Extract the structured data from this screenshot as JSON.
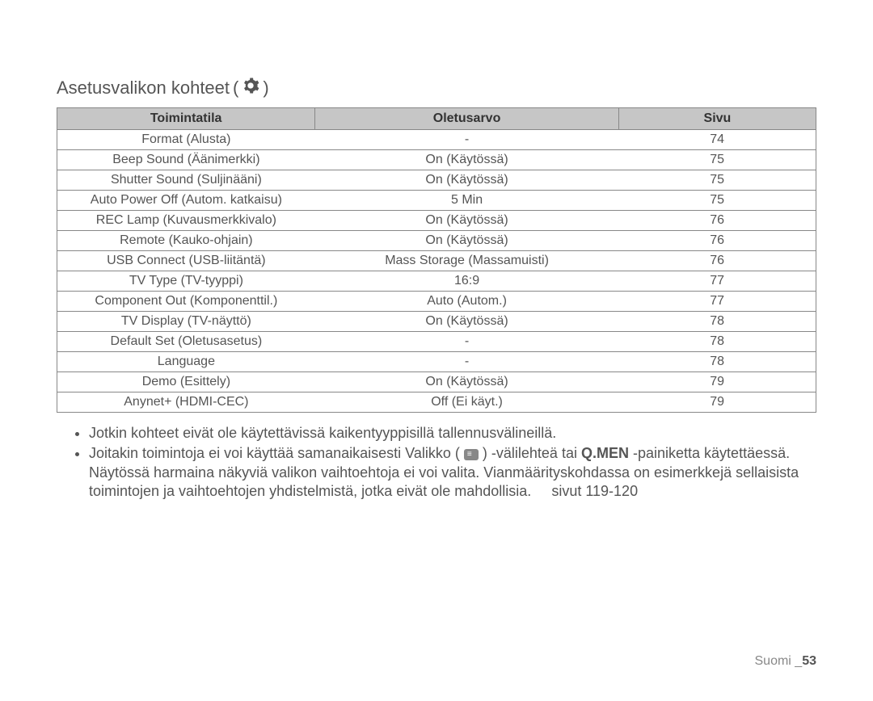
{
  "heading": "Asetusvalikon kohteet",
  "heading_open_paren": "(",
  "heading_close_paren": ")",
  "table": {
    "columns": [
      "Toimintatila",
      "Oletusarvo",
      "Sivu"
    ],
    "rows": [
      [
        "Format (Alusta)",
        "-",
        "74"
      ],
      [
        "Beep Sound (Äänimerkki)",
        "On (Käytössä)",
        "75"
      ],
      [
        "Shutter Sound (Suljinääni)",
        "On (Käytössä)",
        "75"
      ],
      [
        "Auto Power Off (Autom. katkaisu)",
        "5 Min",
        "75"
      ],
      [
        "REC Lamp (Kuvausmerkkivalo)",
        "On (Käytössä)",
        "76"
      ],
      [
        "Remote (Kauko-ohjain)",
        "On (Käytössä)",
        "76"
      ],
      [
        "USB Connect (USB-liitäntä)",
        "Mass Storage (Massamuisti)",
        "76"
      ],
      [
        "TV Type (TV-tyyppi)",
        "16:9",
        "77"
      ],
      [
        "Component Out (Komponenttil.)",
        "Auto (Autom.)",
        "77"
      ],
      [
        "TV Display (TV-näyttö)",
        "On (Käytössä)",
        "78"
      ],
      [
        "Default Set (Oletusasetus)",
        "-",
        "78"
      ],
      [
        "Language",
        "-",
        "78"
      ],
      [
        "Demo (Esittely)",
        "On (Käytössä)",
        "79"
      ],
      [
        "Anynet+ (HDMI-CEC)",
        "Off (Ei käyt.)",
        "79"
      ]
    ]
  },
  "notes": {
    "bullet1": "Jotkin kohteet eivät ole käytettävissä kaikentyyppisillä tallennusvälineillä.",
    "bullet2_a": "Joitakin toimintoja ei voi käyttää samanaikaisesti Valikko (",
    "bullet2_b": ") -välilehteä tai ",
    "bullet2_qmen": "Q.MEN",
    "bullet2_c": " -painiketta käytettäessä. Näytössä harmaina näkyviä valikon vaihtoehtoja ei voi valita. Vianmäärityskohdassa on esimerkkejä sellaisista toimintojen ja vaihtoehtojen yhdistelmistä, jotka eivät ole mahdollisia.",
    "bullet2_pages": "sivut 119-120"
  },
  "footer": {
    "lang": "Suomi ",
    "underscore": "_",
    "page": "53"
  }
}
